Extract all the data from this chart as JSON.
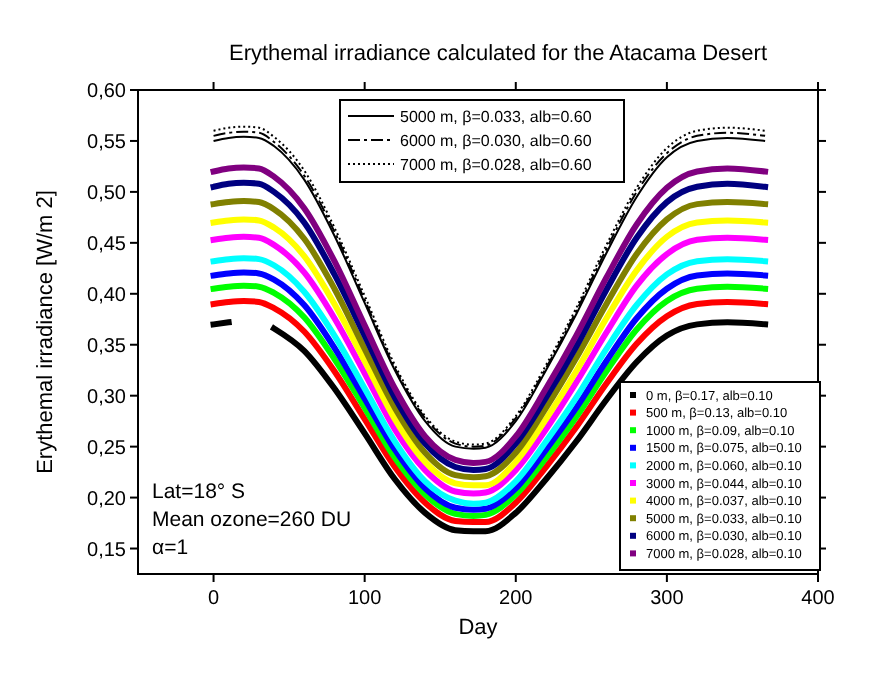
{
  "chart_data": {
    "type": "line",
    "title": "Erythemal irradiance calculated for the Atacama Desert",
    "xlabel": "Day",
    "ylabel": "Erythemal irradiance [W/m 2]",
    "annotations": [
      "Lat=18° S",
      "Mean ozone=260 DU",
      "α=1"
    ],
    "x": [
      0,
      10,
      20,
      30,
      40,
      60,
      80,
      100,
      120,
      140,
      160,
      172,
      180,
      200,
      220,
      240,
      260,
      280,
      300,
      320,
      340,
      365
    ],
    "xlim": [
      -50,
      400
    ],
    "xticks": [
      0,
      100,
      200,
      300,
      400
    ],
    "ylim": [
      0.125,
      0.6
    ],
    "yticks": [
      {
        "value": 0.15,
        "label": "0,15"
      },
      {
        "value": 0.2,
        "label": "0,20"
      },
      {
        "value": 0.25,
        "label": "0,25"
      },
      {
        "value": 0.3,
        "label": "0,30"
      },
      {
        "value": 0.35,
        "label": "0,35"
      },
      {
        "value": 0.4,
        "label": "0,40"
      },
      {
        "value": 0.45,
        "label": "0,45"
      },
      {
        "value": 0.5,
        "label": "0,50"
      },
      {
        "value": 0.55,
        "label": "0,55"
      },
      {
        "value": 0.6,
        "label": "0,60"
      }
    ],
    "grid": false,
    "legend": "bottom right",
    "series": [
      {
        "name": "0 m, β=0.17, alb=0.10",
        "color": "#000000",
        "values": [
          0.37,
          0.372,
          null,
          null,
          0.366,
          0.344,
          0.307,
          0.263,
          0.218,
          0.185,
          0.168,
          0.167,
          0.167,
          0.185,
          0.218,
          0.255,
          0.296,
          0.333,
          0.359,
          0.37,
          0.372,
          0.37
        ]
      },
      {
        "name": "500 m, β=0.13, alb=0.10",
        "color": "#ff0000",
        "values": [
          0.39,
          0.392,
          0.393,
          0.392,
          0.386,
          0.363,
          0.324,
          0.277,
          0.23,
          0.195,
          0.177,
          0.176,
          0.176,
          0.195,
          0.23,
          0.269,
          0.312,
          0.351,
          0.378,
          0.39,
          0.392,
          0.39
        ]
      },
      {
        "name": "1000 m, β=0.09, alb=0.10",
        "color": "#00ff00",
        "values": [
          0.405,
          0.407,
          0.408,
          0.407,
          0.401,
          0.377,
          0.336,
          0.288,
          0.239,
          0.203,
          0.184,
          0.182,
          0.183,
          0.203,
          0.239,
          0.279,
          0.324,
          0.365,
          0.393,
          0.405,
          0.407,
          0.405
        ]
      },
      {
        "name": "1500 m, β=0.075, alb=0.10",
        "color": "#0000ff",
        "values": [
          0.418,
          0.42,
          0.421,
          0.42,
          0.414,
          0.389,
          0.347,
          0.297,
          0.247,
          0.209,
          0.19,
          0.188,
          0.189,
          0.209,
          0.247,
          0.288,
          0.334,
          0.376,
          0.405,
          0.418,
          0.42,
          0.418
        ]
      },
      {
        "name": "2000 m, β=0.060, alb=0.10",
        "color": "#00ffff",
        "values": [
          0.432,
          0.434,
          0.435,
          0.434,
          0.428,
          0.402,
          0.359,
          0.307,
          0.255,
          0.216,
          0.197,
          0.194,
          0.195,
          0.216,
          0.255,
          0.298,
          0.346,
          0.389,
          0.419,
          0.432,
          0.434,
          0.432
        ]
      },
      {
        "name": "3000 m, β=0.044, alb=0.10",
        "color": "#ff00ff",
        "values": [
          0.453,
          0.455,
          0.456,
          0.455,
          0.448,
          0.421,
          0.376,
          0.322,
          0.267,
          0.227,
          0.206,
          0.204,
          0.205,
          0.227,
          0.267,
          0.313,
          0.362,
          0.408,
          0.439,
          0.453,
          0.455,
          0.453
        ]
      },
      {
        "name": "4000 m, β=0.037, alb=0.10",
        "color": "#ffff00",
        "values": [
          0.47,
          0.472,
          0.473,
          0.472,
          0.465,
          0.437,
          0.39,
          0.334,
          0.277,
          0.235,
          0.214,
          0.212,
          0.212,
          0.235,
          0.277,
          0.324,
          0.376,
          0.423,
          0.456,
          0.47,
          0.472,
          0.47
        ]
      },
      {
        "name": "5000 m, β=0.033, alb=0.10",
        "color": "#808000",
        "values": [
          0.488,
          0.49,
          0.491,
          0.49,
          0.483,
          0.454,
          0.405,
          0.346,
          0.288,
          0.244,
          0.222,
          0.22,
          0.221,
          0.244,
          0.288,
          0.337,
          0.39,
          0.439,
          0.473,
          0.488,
          0.49,
          0.488
        ]
      },
      {
        "name": "6000 m, β=0.030, alb=0.10",
        "color": "#000080",
        "values": [
          0.505,
          0.508,
          0.509,
          0.508,
          0.5,
          0.47,
          0.419,
          0.359,
          0.298,
          0.253,
          0.23,
          0.227,
          0.228,
          0.253,
          0.298,
          0.348,
          0.404,
          0.455,
          0.49,
          0.505,
          0.508,
          0.505
        ]
      },
      {
        "name": "7000 m, β=0.028, alb=0.10",
        "color": "#800080",
        "values": [
          0.52,
          0.523,
          0.524,
          0.523,
          0.515,
          0.484,
          0.432,
          0.369,
          0.307,
          0.26,
          0.237,
          0.234,
          0.235,
          0.26,
          0.307,
          0.359,
          0.416,
          0.468,
          0.504,
          0.52,
          0.523,
          0.52
        ]
      },
      {
        "name": "5000 m, β=0.033, alb=0.60",
        "color": "#000000",
        "line_style": "solid",
        "values": [
          0.55,
          0.553,
          0.554,
          0.553,
          0.545,
          0.512,
          0.457,
          0.391,
          0.325,
          0.275,
          0.25,
          0.248,
          0.249,
          0.275,
          0.325,
          0.38,
          0.44,
          0.495,
          0.534,
          0.55,
          0.553,
          0.55
        ]
      },
      {
        "name": "6000 m, β=0.030, alb=0.60",
        "color": "#000000",
        "line_style": "dashed",
        "values": [
          0.555,
          0.558,
          0.559,
          0.558,
          0.549,
          0.516,
          0.461,
          0.394,
          0.327,
          0.278,
          0.253,
          0.25,
          0.251,
          0.278,
          0.327,
          0.383,
          0.444,
          0.5,
          0.538,
          0.555,
          0.558,
          0.555
        ]
      },
      {
        "name": "7000 m, β=0.028, alb=0.60",
        "color": "#000000",
        "line_style": "dotted",
        "values": [
          0.56,
          0.563,
          0.564,
          0.563,
          0.554,
          0.521,
          0.465,
          0.398,
          0.33,
          0.28,
          0.255,
          0.252,
          0.253,
          0.28,
          0.33,
          0.386,
          0.448,
          0.504,
          0.543,
          0.56,
          0.563,
          0.56
        ]
      }
    ]
  }
}
